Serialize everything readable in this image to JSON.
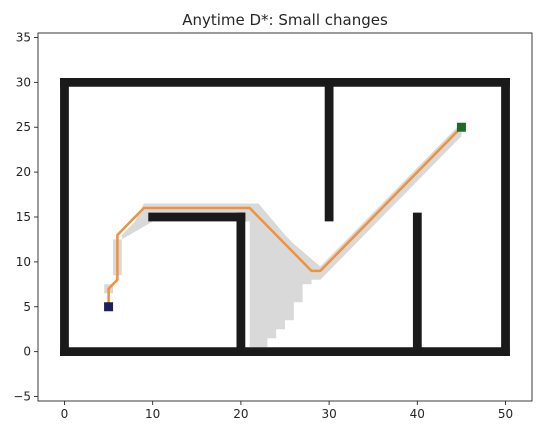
{
  "chart_data": {
    "type": "scatter",
    "title": "Anytime D*: Small changes",
    "xlabel": "",
    "ylabel": "",
    "xlim": [
      -3,
      53
    ],
    "ylim": [
      -5.5,
      35.5
    ],
    "xticks": [
      0,
      10,
      20,
      30,
      40,
      50
    ],
    "yticks": [
      -5,
      0,
      5,
      10,
      15,
      20,
      25,
      30,
      35
    ],
    "grid": false,
    "legend": "none",
    "colors": {
      "obstacle": "#1a1a1a",
      "explored": "#d9d9d9",
      "path": "#f0923c",
      "start": "#1a1f5e",
      "goal": "#1d6b24"
    },
    "obstacle_segments": [
      [
        [
          0,
          0
        ],
        [
          50,
          0
        ]
      ],
      [
        [
          0,
          30
        ],
        [
          50,
          30
        ]
      ],
      [
        [
          0,
          0
        ],
        [
          0,
          30
        ]
      ],
      [
        [
          50,
          0
        ],
        [
          50,
          30
        ]
      ],
      [
        [
          10,
          15
        ],
        [
          20,
          15
        ]
      ],
      [
        [
          20,
          0
        ],
        [
          20,
          15
        ]
      ],
      [
        [
          30,
          15
        ],
        [
          30,
          30
        ]
      ],
      [
        [
          40,
          0
        ],
        [
          40,
          15
        ]
      ]
    ],
    "explored_region": [
      [
        21,
        0.5
      ],
      [
        23,
        0.5
      ],
      [
        23,
        1.5
      ],
      [
        24,
        1.5
      ],
      [
        24,
        2.5
      ],
      [
        25,
        2.5
      ],
      [
        25,
        3.5
      ],
      [
        26,
        3.5
      ],
      [
        26,
        5.5
      ],
      [
        27,
        5.5
      ],
      [
        27,
        7.5
      ],
      [
        28,
        7.5
      ],
      [
        28,
        8.5
      ],
      [
        29,
        8.5
      ],
      [
        29,
        9.5
      ],
      [
        26,
        12
      ],
      [
        24,
        14
      ],
      [
        22,
        16
      ],
      [
        21,
        16
      ]
    ],
    "explored_band": [
      [
        5.5,
        6.5
      ],
      [
        5.5,
        8.5
      ],
      [
        6.5,
        8.5
      ],
      [
        6.5,
        13
      ],
      [
        8,
        14.5
      ],
      [
        9,
        16.5
      ],
      [
        22,
        16.5
      ],
      [
        28,
        9.5
      ],
      [
        29,
        9.5
      ],
      [
        45,
        25.5
      ],
      [
        45,
        24
      ],
      [
        29,
        8
      ],
      [
        28,
        8
      ],
      [
        22,
        14.5
      ],
      [
        10,
        14.5
      ],
      [
        6.5,
        12.5
      ],
      [
        5.5,
        12.5
      ],
      [
        5.5,
        7.5
      ],
      [
        4.5,
        7.5
      ],
      [
        4.5,
        6.5
      ]
    ],
    "path": {
      "x": [
        5,
        5,
        6,
        6,
        9,
        21,
        28,
        29,
        45
      ],
      "y": [
        5,
        7,
        8,
        13,
        16,
        16,
        9,
        9,
        25
      ]
    },
    "start": {
      "x": 5,
      "y": 5
    },
    "goal": {
      "x": 45,
      "y": 25
    }
  }
}
